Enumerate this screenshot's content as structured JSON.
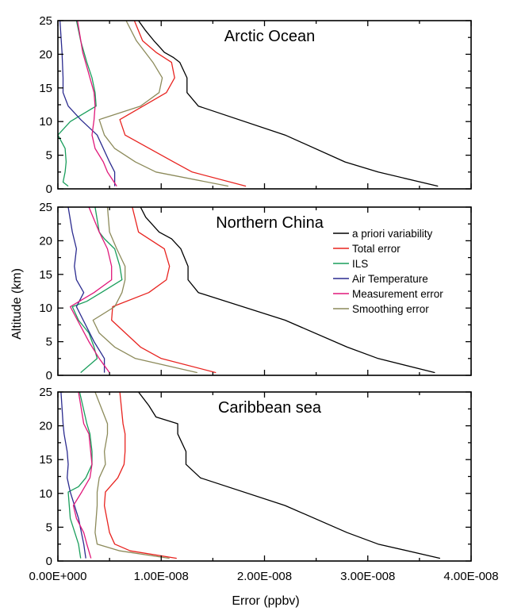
{
  "figure": {
    "ylabel": "Altitude (km)",
    "xlabel": "Error (ppbv)",
    "x_ticks": [
      "0.00E+000",
      "1.00E-008",
      "2.00E-008",
      "3.00E-008",
      "4.00E-008"
    ],
    "y_ticks": [
      "0",
      "5",
      "10",
      "15",
      "20",
      "25"
    ]
  },
  "colors": {
    "a priori variability": "#000000",
    "Total error": "#e8231f",
    "ILS": "#1a9e5c",
    "Air Temperature": "#2b2b8f",
    "Measurement error": "#e0187a",
    "Smoothing error": "#8c8a5a"
  },
  "legend": {
    "placement": "top-right of middle panel",
    "entries": [
      "a priori variability",
      "Total error",
      "ILS",
      "Air Temperature",
      "Measurement error",
      "Smoothing error"
    ]
  },
  "chart_data": [
    {
      "type": "line",
      "title": "Arctic Ocean",
      "xlim": [
        0,
        4e-08
      ],
      "ylim": [
        0,
        25
      ],
      "series": [
        {
          "name": "a priori variability",
          "x": [
            3.68e-08,
            3.1e-08,
            2.78e-08,
            2.2e-08,
            1.36e-08,
            1.25e-08,
            1.25e-08,
            1.18e-08,
            1.12e-08,
            1.03e-08,
            9.9e-09,
            9.3e-09,
            8.5e-09,
            7.8e-09
          ],
          "y": [
            0.4,
            2.5,
            4.0,
            8.0,
            12.3,
            14.3,
            16.5,
            18.8,
            19.5,
            20.3,
            21.0,
            22.0,
            23.5,
            25.0
          ]
        },
        {
          "name": "Total error",
          "x": [
            1.82e-08,
            1.3e-08,
            1.12e-08,
            6.5e-09,
            6e-09,
            1.05e-08,
            1.13e-08,
            1.1e-08,
            9.5e-09,
            8.2e-09,
            7.4e-09
          ],
          "y": [
            0.4,
            2.5,
            4.0,
            8.0,
            10.3,
            14.3,
            16.5,
            18.8,
            20.3,
            22.0,
            25.0
          ]
        },
        {
          "name": "ILS",
          "x": [
            1e-09,
            5e-10,
            7e-10,
            8e-10,
            7e-10,
            0.0,
            1.2e-09,
            3.7e-09,
            3.6e-09,
            3.3e-09,
            2.8e-09,
            2.2e-09,
            1.8e-09
          ],
          "y": [
            0.4,
            1.0,
            2.5,
            4.0,
            6.0,
            8.0,
            10.0,
            12.3,
            14.3,
            16.5,
            18.8,
            22.0,
            25.0
          ]
        },
        {
          "name": "Air Temperature",
          "x": [
            5.5e-09,
            5.5e-09,
            5e-09,
            3.8e-09,
            2.2e-09,
            1e-09,
            5e-10,
            5e-10,
            4e-10,
            2e-10
          ],
          "y": [
            0.4,
            2.5,
            4.0,
            8.0,
            10.3,
            12.3,
            14.3,
            16.5,
            20.3,
            25.0
          ]
        },
        {
          "name": "Measurement error",
          "x": [
            5.7e-09,
            4.8e-09,
            4.4e-09,
            3.6e-09,
            3.3e-09,
            3.5e-09,
            3.6e-09,
            3.5e-09,
            3.1e-09,
            2.4e-09,
            1.9e-09
          ],
          "y": [
            0.4,
            2.5,
            4.0,
            6.0,
            8.0,
            10.3,
            12.3,
            14.3,
            16.5,
            20.3,
            25.0
          ]
        },
        {
          "name": "Smoothing error",
          "x": [
            1.65e-08,
            9.5e-09,
            7.5e-09,
            5.5e-09,
            4.5e-09,
            4e-09,
            8e-09,
            9.8e-09,
            1.01e-08,
            9.2e-09,
            7.6e-09,
            6.6e-09
          ],
          "y": [
            0.4,
            2.5,
            4.0,
            6.0,
            8.0,
            10.3,
            12.3,
            14.3,
            16.5,
            18.8,
            22.0,
            25.0
          ]
        }
      ]
    },
    {
      "type": "line",
      "title": "Northern China",
      "xlim": [
        0,
        4e-08
      ],
      "ylim": [
        0,
        25
      ],
      "series": [
        {
          "name": "a priori variability",
          "x": [
            3.65e-08,
            3.1e-08,
            2.8e-08,
            2.2e-08,
            1.36e-08,
            1.26e-08,
            1.26e-08,
            1.19e-08,
            1.1e-08,
            9.8e-09,
            8.5e-09,
            8e-09
          ],
          "y": [
            0.4,
            2.5,
            4.2,
            8.2,
            12.3,
            14.2,
            16.2,
            18.8,
            20.3,
            21.3,
            23.5,
            25.0
          ]
        },
        {
          "name": "Total error",
          "x": [
            1.53e-08,
            1e-08,
            8e-09,
            5.2e-09,
            5.3e-09,
            8.8e-09,
            1.05e-08,
            1.08e-08,
            1.03e-08,
            7.8e-09,
            7.2e-09
          ],
          "y": [
            0.4,
            2.5,
            4.2,
            8.2,
            10.2,
            12.3,
            14.2,
            16.2,
            18.8,
            21.3,
            25.0
          ]
        },
        {
          "name": "ILS",
          "x": [
            2.2e-09,
            3.8e-09,
            3.5e-09,
            3e-09,
            2e-09,
            1.4e-09,
            2.8e-09,
            4.2e-09,
            6.2e-09,
            6e-09,
            5.5e-09,
            4.5e-09,
            4e-09,
            3.6e-09
          ],
          "y": [
            0.4,
            2.5,
            4.2,
            6.3,
            8.2,
            10.2,
            11.0,
            12.3,
            14.2,
            16.2,
            18.8,
            20.3,
            21.3,
            25.0
          ]
        },
        {
          "name": "Air Temperature",
          "x": [
            4.5e-09,
            4.5e-09,
            3.5e-09,
            1.8e-09,
            2.5e-09,
            1.8e-09,
            1.6e-09,
            1.8e-09,
            1.4e-09,
            1e-09
          ],
          "y": [
            0.4,
            2.5,
            5.0,
            10.2,
            12.3,
            14.2,
            16.2,
            18.8,
            21.3,
            25.0
          ]
        },
        {
          "name": "Measurement error",
          "x": [
            5e-09,
            4e-09,
            3e-09,
            1.2e-09,
            3.5e-09,
            5.2e-09,
            5.2e-09,
            4.8e-09,
            4e-09,
            3e-09
          ],
          "y": [
            0.4,
            2.5,
            5.0,
            10.2,
            12.3,
            14.2,
            16.2,
            18.8,
            21.3,
            25.0
          ]
        },
        {
          "name": "Smoothing error",
          "x": [
            1.35e-08,
            7.5e-09,
            5.5e-09,
            4e-09,
            3.4e-09,
            5.5e-09,
            6.2e-09,
            6.5e-09,
            6.5e-09,
            5.7e-09,
            5e-09,
            4.8e-09
          ],
          "y": [
            0.4,
            2.5,
            4.2,
            6.3,
            8.2,
            10.2,
            12.3,
            14.2,
            16.2,
            18.8,
            21.3,
            25.0
          ]
        }
      ]
    },
    {
      "type": "line",
      "title": "Caribbean sea",
      "xlim": [
        0,
        4e-08
      ],
      "ylim": [
        0,
        25
      ],
      "series": [
        {
          "name": "a priori variability",
          "x": [
            3.7e-08,
            3.1e-08,
            2.8e-08,
            2.2e-08,
            1.38e-08,
            1.24e-08,
            1.24e-08,
            1.16e-08,
            1.16e-08,
            9.5e-09,
            8.8e-09,
            7.8e-09
          ],
          "y": [
            0.4,
            2.5,
            4.2,
            8.2,
            12.3,
            14.3,
            16.2,
            18.8,
            20.3,
            21.3,
            23.0,
            25.0
          ]
        },
        {
          "name": "Total error",
          "x": [
            1.15e-08,
            7e-09,
            5.5e-09,
            5e-09,
            4.5e-09,
            4.6e-09,
            5.8e-09,
            6.4e-09,
            6.5e-09,
            6.5e-09,
            6.3e-09,
            6e-09
          ],
          "y": [
            0.4,
            1.5,
            2.5,
            4.2,
            8.2,
            10.2,
            12.3,
            14.3,
            16.2,
            18.8,
            20.3,
            25.0
          ]
        },
        {
          "name": "ILS",
          "x": [
            2.2e-09,
            2e-09,
            1.2e-09,
            1e-09,
            2e-09,
            2.7e-09,
            3.3e-09,
            3.3e-09,
            3.1e-09,
            2.8e-09,
            2.1e-09
          ],
          "y": [
            0.4,
            2.5,
            6.3,
            10.2,
            11.0,
            12.3,
            14.3,
            16.2,
            18.8,
            20.3,
            25.0
          ]
        },
        {
          "name": "Air Temperature",
          "x": [
            2.7e-09,
            2.5e-09,
            2e-09,
            1.2e-09,
            9e-10,
            1e-09,
            9e-10,
            6e-10,
            5e-10,
            3e-10
          ],
          "y": [
            0.4,
            2.5,
            6.3,
            10.2,
            12.3,
            14.3,
            16.2,
            18.8,
            20.3,
            25.0
          ]
        },
        {
          "name": "Measurement error",
          "x": [
            3.2e-09,
            2.8e-09,
            2.5e-09,
            1.8e-09,
            1.5e-09,
            2.3e-09,
            3.1e-09,
            3.3e-09,
            3e-09,
            2.5e-09,
            2e-09
          ],
          "y": [
            0.4,
            2.5,
            4.2,
            6.3,
            8.2,
            10.2,
            12.3,
            14.3,
            18.8,
            20.3,
            25.0
          ]
        },
        {
          "name": "Smoothing error",
          "x": [
            1.08e-08,
            6e-09,
            3.8e-09,
            3.6e-09,
            3.8e-09,
            3.8e-09,
            4e-09,
            4.6e-09,
            4.5e-09,
            4.8e-09,
            4.8e-09,
            3.6e-09
          ],
          "y": [
            0.4,
            1.5,
            2.5,
            4.2,
            8.2,
            10.2,
            12.3,
            14.3,
            16.2,
            18.8,
            20.3,
            25.0
          ]
        }
      ]
    }
  ]
}
